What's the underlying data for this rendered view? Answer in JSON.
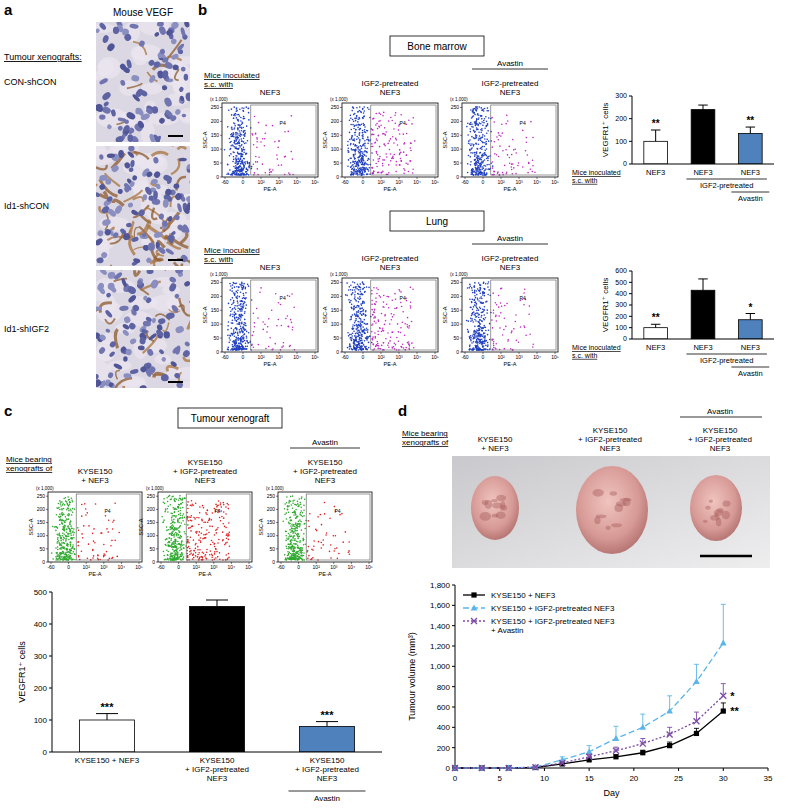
{
  "figure": {
    "panel_a": {
      "label": "a",
      "title": "Mouse VEGF",
      "row_header": "Tumour xenografts:",
      "rows": [
        "CON-shCON",
        "Id1-shCON",
        "Id1-shIGF2"
      ]
    },
    "panel_b": {
      "label": "b",
      "row_header": "Mice inoculated s.c. with",
      "columns": [
        "NEF3",
        "IGF2-pretreated NEF3",
        "IGF2-pretreated NEF3"
      ],
      "treatment": "Avastin"
    },
    "panel_c": {
      "label": "c",
      "row_header": "Mice bearing xenografts of",
      "columns": [
        "KYSE150 + NEF3",
        "KYSE150 + IGF2-pretreated NEF3",
        "KYSE150 + IGF2-pretreated NEF3"
      ],
      "treatment": "Avastin"
    },
    "panel_d": {
      "label": "d",
      "row_header": "Mice bearing xenografts of",
      "columns": [
        "KYSE150 + NEF3",
        "KYSE150 + IGF2-pretreated NEF3",
        "KYSE150 + IGF2-pretreated NEF3"
      ],
      "treatment": "Avastin"
    },
    "flow_cytometry": {
      "y_label": "SSC-A",
      "y_unit": "(x 1,000)",
      "ytick_labels": [
        "0",
        "50",
        "100",
        "150",
        "200",
        "250"
      ],
      "x_label": "PE-A",
      "xtick_labels": [
        "-60",
        "0",
        "10²",
        "10³",
        "10⁴",
        "10⁵"
      ],
      "gate": "P4"
    }
  },
  "chart_data": [
    {
      "type": "bar",
      "title": "Bone marrow",
      "y_label": "VEGFR1⁺ cells",
      "x_label": "Mice inoculated s.c. with",
      "categories": [
        "NEF3",
        "NEF3",
        "NEF3"
      ],
      "values": [
        100,
        240,
        135
      ],
      "errors": [
        50,
        20,
        28
      ],
      "significance": [
        "**",
        null,
        "**"
      ],
      "colors": [
        "#ffffff",
        "#000000",
        "#4f81bd"
      ],
      "ylim": [
        0,
        300
      ],
      "yticks": [
        0,
        100,
        200,
        300
      ],
      "annotations": {
        "span": "IGF2-pretreated",
        "treatment": "Avastin"
      }
    },
    {
      "type": "bar",
      "title": "Lung",
      "y_label": "VEGFR1⁺ cells",
      "x_label": "Mice inoculated s.c. with",
      "categories": [
        "NEF3",
        "NEF3",
        "NEF3"
      ],
      "values": [
        100,
        430,
        170
      ],
      "errors": [
        30,
        100,
        55
      ],
      "significance": [
        "**",
        null,
        "*"
      ],
      "colors": [
        "#ffffff",
        "#000000",
        "#4f81bd"
      ],
      "ylim": [
        0,
        600
      ],
      "yticks": [
        0,
        100,
        200,
        300,
        400,
        500,
        600
      ],
      "annotations": {
        "span": "IGF2-pretreated",
        "treatment": "Avastin"
      }
    },
    {
      "type": "bar",
      "title": "Tumour xenograft",
      "y_label": "VEGFR1⁺ cells",
      "categories": [
        "KYSE150 + NEF3",
        "KYSE150 + IGF2-pretreated NEF3",
        "KYSE150 + IGF2-pretreated NEF3"
      ],
      "values": [
        100,
        455,
        80
      ],
      "errors": [
        20,
        20,
        15
      ],
      "significance": [
        "***",
        null,
        "***"
      ],
      "colors": [
        "#ffffff",
        "#000000",
        "#4f81bd"
      ],
      "ylim": [
        0,
        500
      ],
      "yticks": [
        0,
        100,
        200,
        300,
        400,
        500
      ],
      "annotations": {
        "treatment": "Avastin"
      }
    },
    {
      "type": "line",
      "x_label": "Day",
      "y_label": "Tumour volume (mm³)",
      "x": [
        0,
        3,
        6,
        9,
        12,
        15,
        18,
        21,
        24,
        27,
        30
      ],
      "xlim": [
        0,
        35
      ],
      "xticks": [
        0,
        5,
        10,
        15,
        20,
        25,
        30,
        35
      ],
      "ylim": [
        0,
        1800
      ],
      "yticks": [
        0,
        200,
        400,
        600,
        800,
        {
          "value": 1000,
          "label": "1,000"
        },
        {
          "value": 1200,
          "label": "1,200"
        },
        {
          "value": 1400,
          "label": "1,400"
        },
        {
          "value": 1600,
          "label": "1,600"
        },
        {
          "value": 1800,
          "label": "1,800"
        }
      ],
      "legend": "upper left",
      "series": [
        {
          "name": "KYSE150 + NEF3",
          "color": "#000000",
          "marker": "square",
          "line_style": "solid",
          "values": [
            0,
            0,
            0,
            5,
            40,
            80,
            110,
            150,
            220,
            340,
            560
          ],
          "errors": [
            0,
            0,
            0,
            3,
            8,
            15,
            20,
            25,
            35,
            50,
            80
          ],
          "significance": "**"
        },
        {
          "name": "KYSE150 + IGF2-pretreated NEF3",
          "color": "#5bb5e8",
          "marker": "triangle",
          "line_style": "dashed",
          "values": [
            0,
            0,
            0,
            10,
            80,
            160,
            290,
            400,
            560,
            850,
            1230
          ],
          "errors": [
            0,
            0,
            0,
            5,
            30,
            60,
            120,
            130,
            150,
            170,
            380
          ]
        },
        {
          "name": "KYSE150 + IGF2-pretreated NEF3 + Avastin",
          "color": "#7d4aa8",
          "marker": "x",
          "line_style": "dotted",
          "values": [
            0,
            0,
            0,
            8,
            50,
            110,
            170,
            240,
            330,
            460,
            710
          ],
          "errors": [
            0,
            0,
            0,
            4,
            15,
            25,
            35,
            50,
            70,
            90,
            120
          ],
          "significance": "*"
        }
      ]
    }
  ]
}
